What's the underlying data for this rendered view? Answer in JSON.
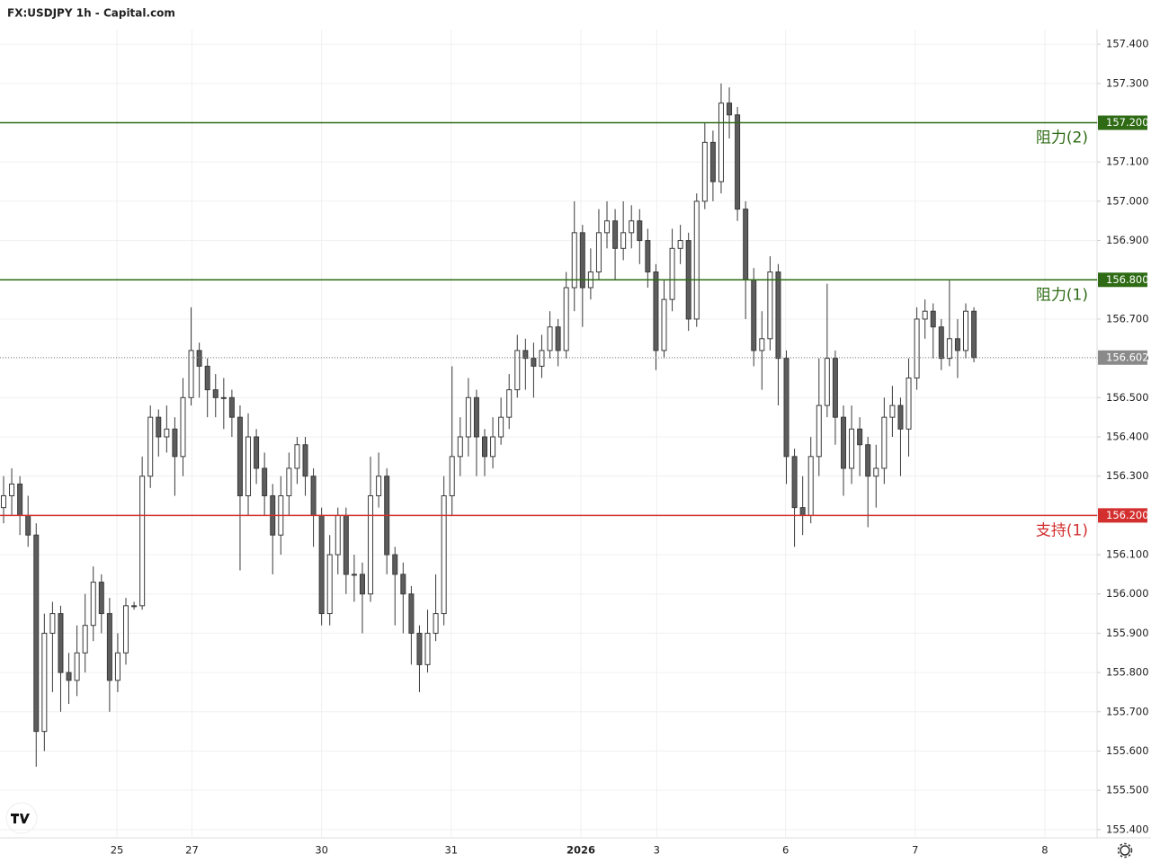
{
  "chart_data": {
    "type": "candlestick",
    "title": "FX:USDJPY 1h - Capital.com",
    "up_color": "#ffffff",
    "down_color": "#5d5d5d",
    "border_color": "#3a3a3a",
    "grid": true,
    "ylim": [
      155.379,
      157.437
    ],
    "yticks": [
      {
        "value": 155.4,
        "label": "155.400"
      },
      {
        "value": 155.5,
        "label": "155.500"
      },
      {
        "value": 155.6,
        "label": "155.600"
      },
      {
        "value": 155.7,
        "label": "155.700"
      },
      {
        "value": 155.8,
        "label": "155.800"
      },
      {
        "value": 155.9,
        "label": "155.900"
      },
      {
        "value": 156.0,
        "label": "156.000"
      },
      {
        "value": 156.1,
        "label": "156.100"
      },
      {
        "value": 156.2,
        "label": "156.200"
      },
      {
        "value": 156.3,
        "label": "156.300"
      },
      {
        "value": 156.4,
        "label": "156.400"
      },
      {
        "value": 156.5,
        "label": "156.500"
      },
      {
        "value": 156.6,
        "label": "156.600"
      },
      {
        "value": 156.7,
        "label": "156.700"
      },
      {
        "value": 156.8,
        "label": "156.800"
      },
      {
        "value": 156.9,
        "label": "156.900"
      },
      {
        "value": 157.0,
        "label": "157.000"
      },
      {
        "value": 157.1,
        "label": "157.100"
      },
      {
        "value": 157.2,
        "label": "157.200"
      },
      {
        "value": 157.3,
        "label": "157.300"
      },
      {
        "value": 157.4,
        "label": "157.400"
      }
    ],
    "xlim": [
      -0.44,
      134.1
    ],
    "xticks": [
      {
        "value": 13.9,
        "label": "25"
      },
      {
        "value": 23.1,
        "label": "27"
      },
      {
        "value": 39.0,
        "label": "30"
      },
      {
        "value": 54.9,
        "label": "31"
      },
      {
        "value": 70.8,
        "label": "2026"
      },
      {
        "value": 80.1,
        "label": "3"
      },
      {
        "value": 95.9,
        "label": "6"
      },
      {
        "value": 111.8,
        "label": "7"
      },
      {
        "value": 127.7,
        "label": "8"
      }
    ],
    "open": [
      156.22,
      156.25,
      156.28,
      156.2,
      156.15,
      155.65,
      155.9,
      155.95,
      155.8,
      155.78,
      155.85,
      155.92,
      156.03,
      155.95,
      155.78,
      155.85,
      155.97,
      155.97,
      156.3,
      156.45,
      156.4,
      156.42,
      156.35,
      156.5,
      156.62,
      156.58,
      156.52,
      156.5,
      156.5,
      156.45,
      156.25,
      156.4,
      156.32,
      156.25,
      156.15,
      156.25,
      156.32,
      156.38,
      156.3,
      156.2,
      155.95,
      156.1,
      156.2,
      156.05,
      156.05,
      156.0,
      156.25,
      156.3,
      156.1,
      156.05,
      156.0,
      155.9,
      155.82,
      155.9,
      155.95,
      156.25,
      156.35,
      156.4,
      156.5,
      156.4,
      156.35,
      156.4,
      156.45,
      156.52,
      156.62,
      156.6,
      156.58,
      156.62,
      156.68,
      156.62,
      156.78,
      156.92,
      156.78,
      156.82,
      156.92,
      156.95,
      156.88,
      156.92,
      156.95,
      156.9,
      156.82,
      156.62,
      156.75,
      156.88,
      156.9,
      156.7,
      157.0,
      157.15,
      157.05,
      157.25,
      157.22,
      156.98,
      156.8,
      156.62,
      156.65,
      156.82,
      156.6,
      156.35,
      156.22,
      156.2,
      156.35,
      156.48,
      156.6,
      156.45,
      156.32,
      156.42,
      156.38,
      156.3,
      156.32,
      156.45,
      156.48,
      156.42,
      156.55,
      156.7,
      156.72,
      156.68,
      156.6,
      156.65,
      156.62,
      156.72
    ],
    "high": [
      156.3,
      156.32,
      156.3,
      156.25,
      156.18,
      155.95,
      155.98,
      155.97,
      155.85,
      155.92,
      156.0,
      156.07,
      156.05,
      155.99,
      155.9,
      155.99,
      155.98,
      156.35,
      156.48,
      156.47,
      156.48,
      156.45,
      156.55,
      156.73,
      156.64,
      156.6,
      156.56,
      156.55,
      156.52,
      156.48,
      156.46,
      156.42,
      156.36,
      156.28,
      156.3,
      156.36,
      156.4,
      156.4,
      156.32,
      156.22,
      156.15,
      156.22,
      156.22,
      156.1,
      156.08,
      156.35,
      156.36,
      156.32,
      156.12,
      156.08,
      156.02,
      155.92,
      155.96,
      156.05,
      156.3,
      156.58,
      156.45,
      156.55,
      156.52,
      156.42,
      156.45,
      156.5,
      156.56,
      156.66,
      156.65,
      156.64,
      156.66,
      156.72,
      156.7,
      156.82,
      157.0,
      156.94,
      156.88,
      156.98,
      157.0,
      156.98,
      157.0,
      156.99,
      156.98,
      156.93,
      156.84,
      156.8,
      156.93,
      156.94,
      156.92,
      157.02,
      157.2,
      157.18,
      157.3,
      157.29,
      157.24,
      157.0,
      156.83,
      156.72,
      156.86,
      156.84,
      156.62,
      156.37,
      156.3,
      156.4,
      156.6,
      156.79,
      156.62,
      156.48,
      156.48,
      156.45,
      156.4,
      156.38,
      156.5,
      156.53,
      156.5,
      156.6,
      156.73,
      156.75,
      156.74,
      156.7,
      156.8,
      156.7,
      156.74,
      156.73
    ],
    "low": [
      156.18,
      156.2,
      156.15,
      156.12,
      155.56,
      155.6,
      155.75,
      155.7,
      155.72,
      155.74,
      155.8,
      155.88,
      155.9,
      155.7,
      155.75,
      155.82,
      155.96,
      155.96,
      156.27,
      156.35,
      156.36,
      156.25,
      156.3,
      156.48,
      156.5,
      156.45,
      156.45,
      156.42,
      156.4,
      156.06,
      156.2,
      156.28,
      156.2,
      156.05,
      156.1,
      156.2,
      156.28,
      156.25,
      156.12,
      155.92,
      155.92,
      156.05,
      156.0,
      155.98,
      155.9,
      155.98,
      156.22,
      156.05,
      155.92,
      155.9,
      155.82,
      155.75,
      155.8,
      155.88,
      155.92,
      156.2,
      156.3,
      156.35,
      156.3,
      156.3,
      156.32,
      156.38,
      156.42,
      156.5,
      156.52,
      156.5,
      156.55,
      156.6,
      156.58,
      156.6,
      156.72,
      156.68,
      156.75,
      156.8,
      156.88,
      156.8,
      156.85,
      156.88,
      156.84,
      156.78,
      156.57,
      156.6,
      156.72,
      156.84,
      156.67,
      156.68,
      156.98,
      157.0,
      157.02,
      157.16,
      156.95,
      156.7,
      156.58,
      156.52,
      156.62,
      156.48,
      156.28,
      156.12,
      156.15,
      156.18,
      156.3,
      156.45,
      156.38,
      156.25,
      156.28,
      156.3,
      156.17,
      156.22,
      156.28,
      156.4,
      156.3,
      156.35,
      156.52,
      156.65,
      156.6,
      156.57,
      156.58,
      156.55,
      156.6,
      156.59
    ],
    "close": [
      156.25,
      156.28,
      156.2,
      156.15,
      155.65,
      155.9,
      155.95,
      155.8,
      155.78,
      155.85,
      155.92,
      156.03,
      155.95,
      155.78,
      155.85,
      155.97,
      155.97,
      156.3,
      156.45,
      156.4,
      156.42,
      156.35,
      156.5,
      156.62,
      156.58,
      156.52,
      156.5,
      156.5,
      156.45,
      156.25,
      156.4,
      156.32,
      156.25,
      156.15,
      156.25,
      156.32,
      156.38,
      156.3,
      156.2,
      155.95,
      156.1,
      156.2,
      156.05,
      156.05,
      156.0,
      156.25,
      156.3,
      156.1,
      156.05,
      156.0,
      155.9,
      155.82,
      155.9,
      155.95,
      156.25,
      156.35,
      156.4,
      156.5,
      156.4,
      156.35,
      156.4,
      156.45,
      156.52,
      156.62,
      156.6,
      156.58,
      156.62,
      156.68,
      156.62,
      156.78,
      156.92,
      156.78,
      156.82,
      156.92,
      156.95,
      156.88,
      156.92,
      156.95,
      156.9,
      156.82,
      156.62,
      156.75,
      156.88,
      156.9,
      156.7,
      157.0,
      157.15,
      157.05,
      157.25,
      157.22,
      156.98,
      156.8,
      156.62,
      156.65,
      156.82,
      156.6,
      156.35,
      156.22,
      156.2,
      156.35,
      156.48,
      156.6,
      156.45,
      156.32,
      156.42,
      156.38,
      156.3,
      156.32,
      156.45,
      156.48,
      156.42,
      156.55,
      156.7,
      156.72,
      156.68,
      156.6,
      156.65,
      156.62,
      156.72,
      156.602
    ],
    "levels": [
      {
        "name": "阻力(2)",
        "value": 157.2,
        "label": "157.200",
        "color": "#2e6b14"
      },
      {
        "name": "阻力(1)",
        "value": 156.8,
        "label": "156.800",
        "color": "#2e6b14"
      },
      {
        "name": "支持(1)",
        "value": 156.2,
        "label": "156.200",
        "color": "#d32f2f"
      }
    ],
    "last_price": {
      "value": 156.602,
      "label": "156.602",
      "color": "#8a8a8a"
    }
  }
}
